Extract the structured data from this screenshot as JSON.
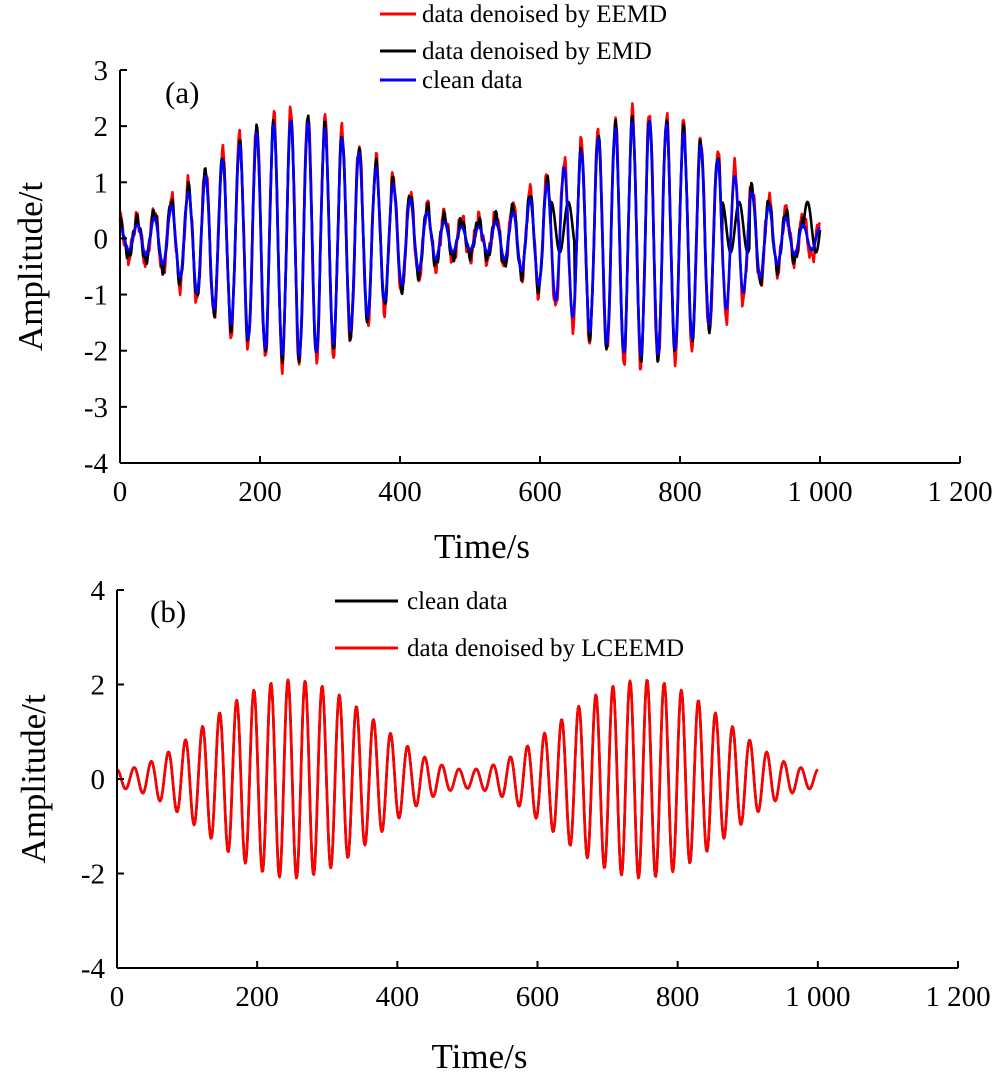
{
  "chart_data": [
    {
      "type": "line",
      "panel_label": "(a)",
      "xlabel": "Time/s",
      "ylabel": "Amplitude/t",
      "xlim": [
        0,
        1200
      ],
      "ylim": [
        -4,
        3
      ],
      "x_ticks": [
        0,
        200,
        400,
        600,
        800,
        1000,
        1200
      ],
      "x_tick_labels": [
        "0",
        "200",
        "400",
        "600",
        "800",
        "1 000",
        "1 200"
      ],
      "y_ticks": [
        3,
        2,
        1,
        0,
        -1,
        -2,
        -3,
        -4
      ],
      "y_tick_labels": [
        "3",
        "2",
        "1",
        "0",
        "-1",
        "-2",
        "-3",
        "-4"
      ],
      "x_range": [
        0,
        1000
      ],
      "legend_position": "top-center",
      "series": [
        {
          "name": "data denoised by EEMD",
          "color": "#ff0000",
          "kind": "eemd",
          "legend_key": "line-top"
        },
        {
          "name": "data denoised by EMD",
          "color": "#000000",
          "kind": "emd",
          "legend_key": "line-top"
        },
        {
          "name": "clean data",
          "color": "#0000ff",
          "kind": "clean",
          "legend_key": "line-top"
        }
      ]
    },
    {
      "type": "line",
      "panel_label": "(b)",
      "xlabel": "Time/s",
      "ylabel": "Amplitude/t",
      "xlim": [
        0,
        1200
      ],
      "ylim": [
        -4,
        4
      ],
      "x_ticks": [
        0,
        200,
        400,
        600,
        800,
        1000,
        1200
      ],
      "x_tick_labels": [
        "0",
        "200",
        "400",
        "600",
        "800",
        "1 000",
        "1 200"
      ],
      "y_ticks": [
        4,
        2,
        0,
        -2,
        -4
      ],
      "y_tick_labels": [
        "4",
        "2",
        "0",
        "-2",
        "-4"
      ],
      "x_range": [
        0,
        1000
      ],
      "legend_position": "top-center",
      "series": [
        {
          "name": "clean data",
          "color": "#000000",
          "kind": "clean",
          "legend_key": "line-mid"
        },
        {
          "name": "data denoised by LCEEMD",
          "color": "#ff0000",
          "kind": "lceemd",
          "legend_key": "line-mid"
        }
      ]
    }
  ]
}
